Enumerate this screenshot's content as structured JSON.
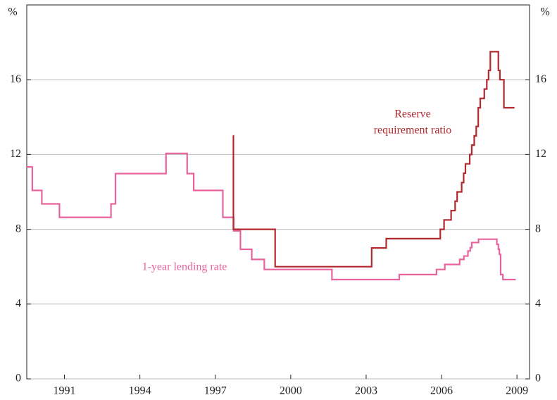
{
  "chart_data": {
    "type": "line",
    "step": "post",
    "y_unit": "%",
    "y2_unit": "%",
    "xlim": [
      1990,
      2010
    ],
    "xticks": [
      {
        "value": 1991.5,
        "label": "1991"
      },
      {
        "value": 1994.5,
        "label": "1994"
      },
      {
        "value": 1997.5,
        "label": "1997"
      },
      {
        "value": 2000.5,
        "label": "2000"
      },
      {
        "value": 2003.5,
        "label": "2003"
      },
      {
        "value": 2006.5,
        "label": "2006"
      },
      {
        "value": 2009.5,
        "label": "2009"
      }
    ],
    "ylim": [
      0,
      20
    ],
    "yticks": [
      0,
      4,
      8,
      12,
      16
    ],
    "y2lim": [
      0,
      20
    ],
    "y2ticks": [
      0,
      4,
      8,
      12,
      16
    ],
    "grid": true,
    "series": [
      {
        "color": "#e8639e",
        "x": [
          1990,
          1990.22,
          1990.6,
          1991.3,
          1993.35,
          1993.53,
          1995.54,
          1996.38,
          1996.64,
          1997.8,
          1998.23,
          1998.5,
          1998.95,
          1999.45,
          2002.14,
          2004.82,
          2006.3,
          2006.63,
          2007.22,
          2007.39,
          2007.55,
          2007.64,
          2007.7,
          2007.97,
          2008.7,
          2008.76,
          2008.8,
          2008.85,
          2008.94,
          2009.45
        ],
        "values": [
          11.34,
          10.08,
          9.36,
          8.64,
          9.36,
          10.98,
          12.06,
          10.98,
          10.08,
          8.64,
          7.92,
          6.93,
          6.39,
          5.85,
          5.31,
          5.58,
          5.85,
          6.12,
          6.39,
          6.57,
          6.84,
          7.02,
          7.29,
          7.47,
          7.2,
          6.93,
          6.66,
          5.58,
          5.31,
          5.31
        ]
      },
      {
        "color": "#b22a2e",
        "axis": "y2",
        "x": [
          1998.2,
          1998.22,
          1999.88,
          2003.72,
          2004.3,
          2006.45,
          2006.6,
          2006.88,
          2007.04,
          2007.12,
          2007.3,
          2007.38,
          2007.45,
          2007.62,
          2007.7,
          2007.8,
          2007.88,
          2007.96,
          2008.04,
          2008.2,
          2008.3,
          2008.37,
          2008.44,
          2008.76,
          2008.82,
          2008.98,
          2009.4
        ],
        "values": [
          13,
          8,
          6,
          7,
          7.5,
          8,
          8.5,
          9,
          9.5,
          10,
          10.5,
          11,
          11.5,
          12,
          12.5,
          13,
          13.5,
          14.5,
          15,
          15.5,
          16,
          16.5,
          17.5,
          16.5,
          16,
          14.5,
          14.5
        ]
      }
    ],
    "annotations": [
      {
        "lines": [
          "Reserve",
          "requirement ratio"
        ],
        "color": "#b22a2e"
      },
      {
        "lines": [
          "1-year lending rate"
        ],
        "color": "#e8639e"
      }
    ]
  }
}
